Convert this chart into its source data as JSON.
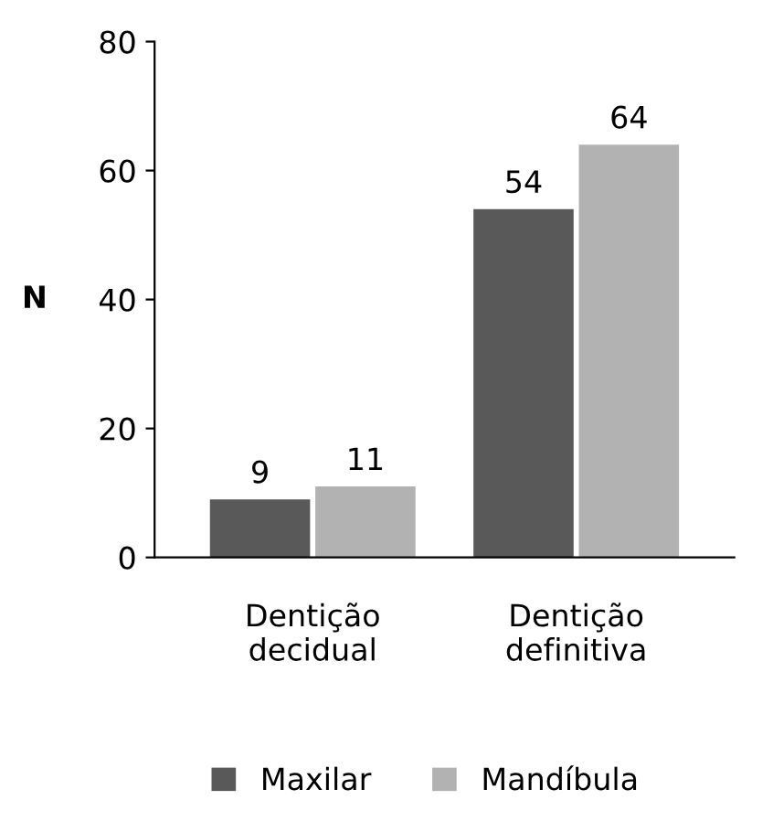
{
  "chart_data": {
    "type": "bar",
    "ylabel": "N",
    "categories": [
      "Dentição\ndecidual",
      "Dentição\ndefinitiva"
    ],
    "series": [
      {
        "name": "Maxilar",
        "color": "#595959",
        "values": [
          9,
          54
        ]
      },
      {
        "name": "Mandíbula",
        "color": "#b2b2b2",
        "values": [
          11,
          64
        ]
      }
    ],
    "ylim": [
      0,
      80
    ],
    "yticks": [
      0,
      20,
      40,
      60,
      80
    ],
    "grid": false,
    "legend": "bottom",
    "data_labels": true
  }
}
